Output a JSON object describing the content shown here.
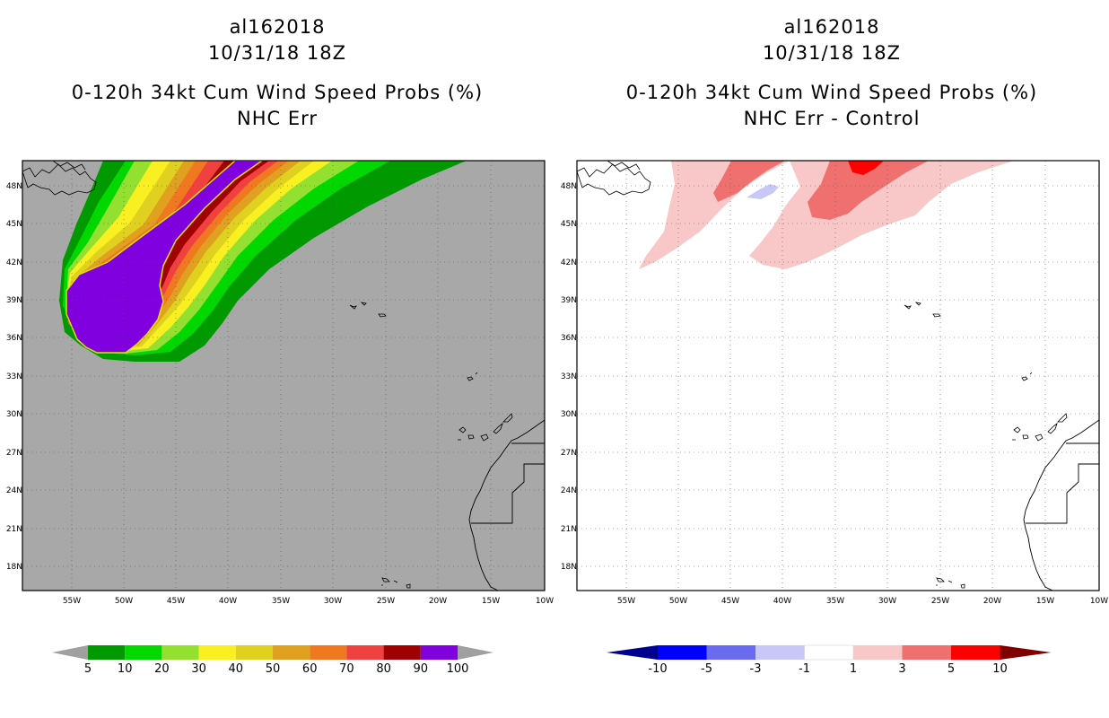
{
  "left": {
    "storm_id": "al162018",
    "datetime": "10/31/18 18Z",
    "product": "0-120h 34kt Cum Wind Speed Probs (%)",
    "subtitle": "NHC Err",
    "lat_labels": [
      "48N",
      "45N",
      "42N",
      "39N",
      "36N",
      "33N",
      "30N",
      "27N",
      "24N",
      "21N",
      "18N"
    ],
    "lon_labels": [
      "55W",
      "50W",
      "45W",
      "40W",
      "35W",
      "30W",
      "25W",
      "20W",
      "15W",
      "10W"
    ],
    "colorbar": {
      "labels": [
        "5",
        "10",
        "20",
        "30",
        "40",
        "50",
        "60",
        "70",
        "80",
        "90",
        "100"
      ],
      "colors": [
        "#009a00",
        "#00d800",
        "#94e030",
        "#f8f020",
        "#e0d020",
        "#e0a020",
        "#f07820",
        "#f04040",
        "#a00000",
        "#8000e0"
      ],
      "end_color": "#a0a0a0"
    },
    "background_color": "#a8a8a8"
  },
  "right": {
    "storm_id": "al162018",
    "datetime": "10/31/18 18Z",
    "product": "0-120h 34kt Cum Wind Speed Probs (%)",
    "subtitle": "NHC Err - Control",
    "lat_labels": [
      "48N",
      "45N",
      "42N",
      "39N",
      "36N",
      "33N",
      "30N",
      "27N",
      "24N",
      "21N",
      "18N"
    ],
    "lon_labels": [
      "55W",
      "50W",
      "45W",
      "40W",
      "35W",
      "30W",
      "25W",
      "20W",
      "15W",
      "10W"
    ],
    "colorbar": {
      "labels": [
        "-10",
        "-5",
        "-3",
        "-1",
        "1",
        "3",
        "5",
        "10"
      ],
      "colors": [
        "#0000c0",
        "#0000ff",
        "#6a6af0",
        "#c8c8f8",
        "#ffffff",
        "#f8c8c8",
        "#f07070",
        "#ff0000"
      ],
      "low_end_color": "#000090",
      "high_end_color": "#800000"
    }
  },
  "chart_data": [
    {
      "type": "heatmap",
      "title": "al162018 10/31/18 18Z 0-120h 34kt Cum Wind Speed Probs (%) NHC Err",
      "xlim": [
        -60,
        -10
      ],
      "ylim": [
        16.5,
        50.5
      ],
      "levels": [
        5,
        10,
        20,
        30,
        40,
        50,
        60,
        70,
        80,
        90,
        100
      ],
      "description_values": {
        "max_probability_region_center": [
          -51,
          38
        ],
        "max_probability": 100
      }
    },
    {
      "type": "heatmap",
      "title": "al162018 10/31/18 18Z 0-120h 34kt Cum Wind Speed Probs (%) NHC Err - Control",
      "xlim": [
        -60,
        -10
      ],
      "ylim": [
        16.5,
        50.5
      ],
      "levels": [
        -10,
        -5,
        -3,
        -1,
        1,
        3,
        5,
        10
      ]
    }
  ]
}
